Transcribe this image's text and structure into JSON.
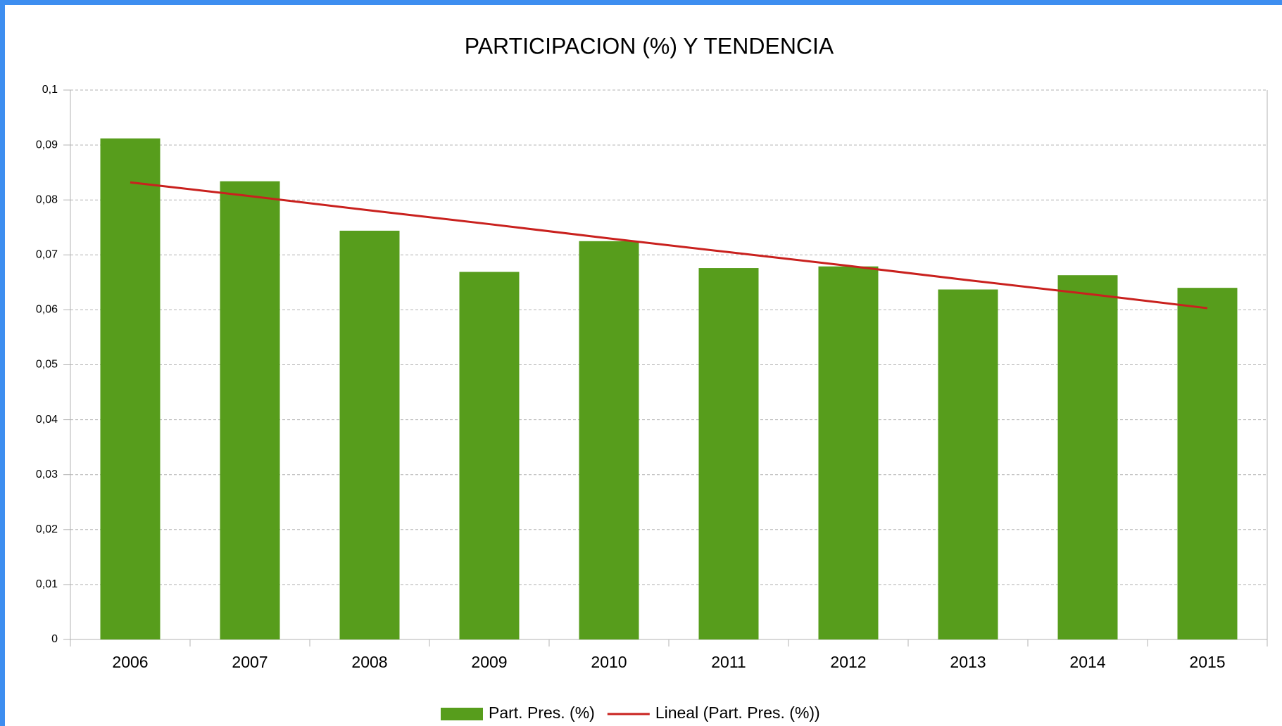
{
  "chart_data": {
    "type": "bar",
    "title": "PARTICIPACION (%) Y TENDENCIA",
    "categories": [
      "2006",
      "2007",
      "2008",
      "2009",
      "2010",
      "2011",
      "2012",
      "2013",
      "2014",
      "2015"
    ],
    "series": [
      {
        "name": "Part. Pres. (%)",
        "color": "#579d1c",
        "type": "bar",
        "values": [
          0.0912,
          0.0834,
          0.0744,
          0.0669,
          0.0725,
          0.0676,
          0.0679,
          0.0637,
          0.0663,
          0.064
        ]
      },
      {
        "name": "Lineal (Part. Pres. (%))",
        "color": "#c9211e",
        "type": "line",
        "values": [
          0.0832,
          0.0807,
          0.0781,
          0.0756,
          0.073,
          0.0705,
          0.068,
          0.0654,
          0.0629,
          0.0603
        ]
      }
    ],
    "ylim": [
      0,
      0.1
    ],
    "yticks": [
      {
        "value": 0,
        "label": "0"
      },
      {
        "value": 0.01,
        "label": "0,01"
      },
      {
        "value": 0.02,
        "label": "0,02"
      },
      {
        "value": 0.03,
        "label": "0,03"
      },
      {
        "value": 0.04,
        "label": "0,04"
      },
      {
        "value": 0.05,
        "label": "0,05"
      },
      {
        "value": 0.06,
        "label": "0,06"
      },
      {
        "value": 0.07,
        "label": "0,07"
      },
      {
        "value": 0.08,
        "label": "0,08"
      },
      {
        "value": 0.09,
        "label": "0,09"
      },
      {
        "value": 0.1,
        "label": "0,1"
      }
    ],
    "grid": true,
    "legend": "bottom"
  }
}
